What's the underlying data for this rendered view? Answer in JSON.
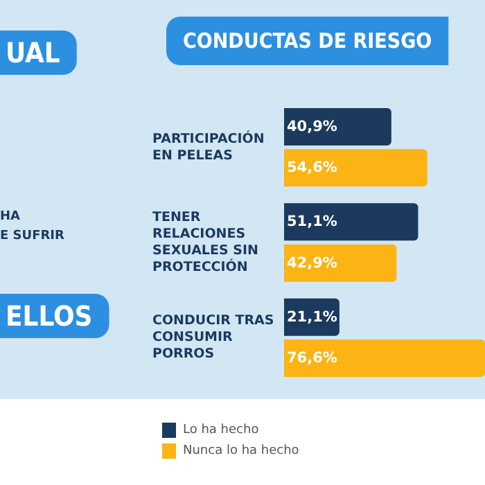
{
  "chart_data": {
    "type": "bar",
    "orientation": "horizontal",
    "title": "CONDUCTAS DE RIESGO",
    "categories": [
      "PARTICIPACIÓN\nEN PELEAS",
      "TENER\nRELACIONES\nSEXUALES SIN\nPROTECCIÓN",
      "CONDUCIR TRAS\nCONSUMIR\nPORROS"
    ],
    "series": [
      {
        "name": "Lo ha hecho",
        "color": "#1b3a5e",
        "values": [
          40.9,
          51.1,
          21.1
        ],
        "value_labels": [
          "40,9%",
          "51,1%",
          "21,1%"
        ]
      },
      {
        "name": "Nunca lo ha hecho",
        "color": "#fbb414",
        "values": [
          54.6,
          42.9,
          76.6
        ],
        "value_labels": [
          "54,6%",
          "42,9%",
          "76,6%"
        ]
      }
    ],
    "legend": "bottom left",
    "annotations": [
      "UAL",
      "HA",
      "E SUFRIR",
      "ELLOS"
    ]
  }
}
